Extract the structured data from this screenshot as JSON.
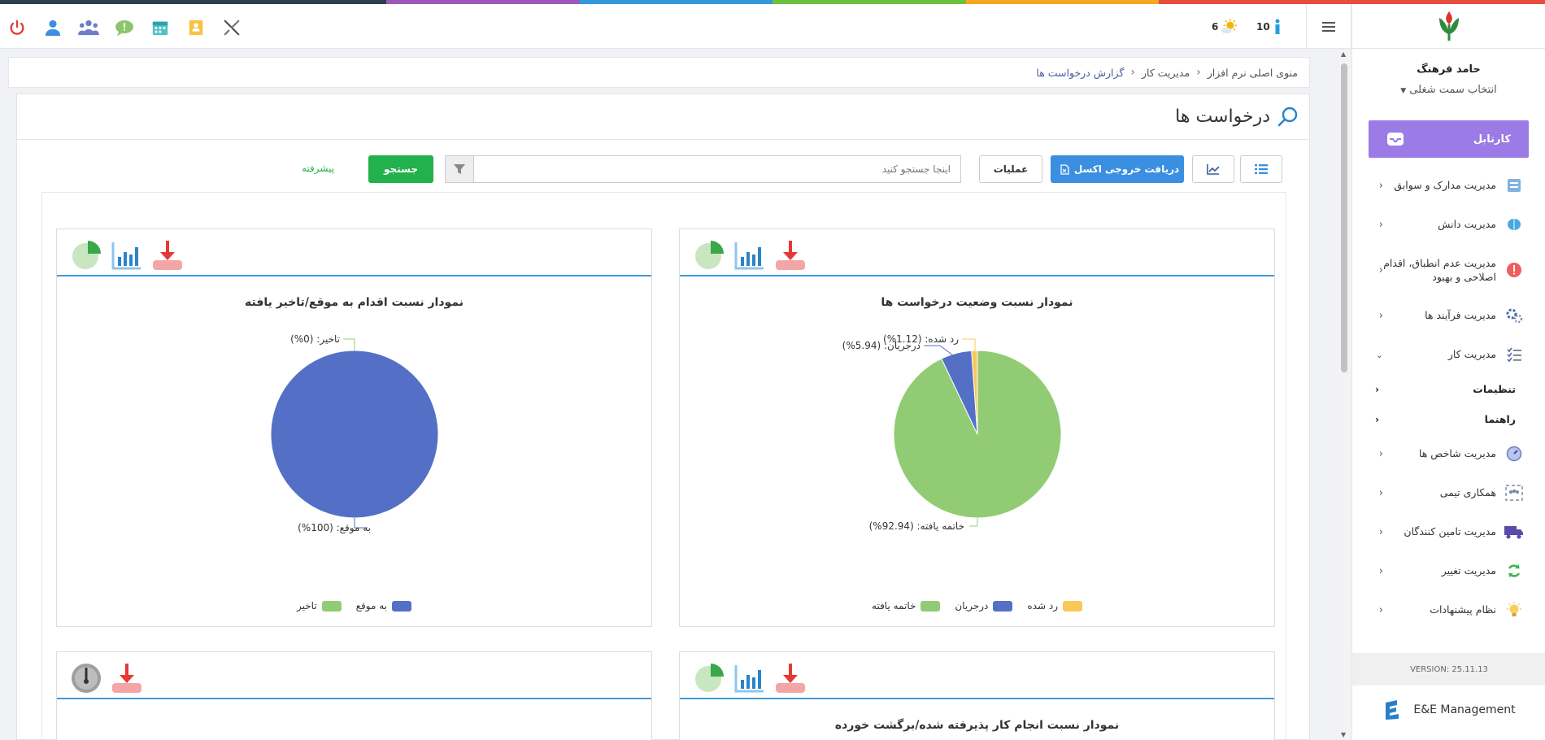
{
  "topbar": {
    "notif_info_count": "10",
    "notif_weather_count": "6"
  },
  "sidebar": {
    "user_name": "حامد فرهنگ",
    "role_select": "انتخاب سمت شغلی",
    "kartabl": "کارتابل",
    "items": [
      {
        "label": "مدیریت مدارک و سوابق"
      },
      {
        "label": "مدیریت دانش"
      },
      {
        "label": "مدیریت عدم انطباق، اقدام اصلاحی و بهبود"
      },
      {
        "label": "مدیریت فرآیند ها"
      },
      {
        "label": "مدیریت کار"
      },
      {
        "label": "مدیریت شاخص ها"
      },
      {
        "label": "همکاری تیمی"
      },
      {
        "label": "مدیریت تامین کنندگان"
      },
      {
        "label": "مدیریت تغییر"
      },
      {
        "label": "نظام پیشنهادات"
      }
    ],
    "subitems": [
      {
        "label": "تنظیمات"
      },
      {
        "label": "راهنما"
      }
    ],
    "version": "VERSION: 25.11.13",
    "brand": "E&E Management"
  },
  "breadcrumb": {
    "items": [
      "منوی اصلی نرم افزار",
      "مدیریت کار",
      "گزارش درخواست ها"
    ]
  },
  "page": {
    "title": "درخواست ها"
  },
  "toolbar": {
    "excel": "دریافت خروجی اکسل",
    "operations": "عملیات",
    "search_placeholder": "اینجا جستجو کنید",
    "search_button": "جستجو",
    "advanced": "پیشرفته"
  },
  "chart_data": [
    {
      "type": "pie",
      "title": "نمودار نسبت وضعیت درخواست ها",
      "categories": [
        "خاتمه یافته",
        "درجریان",
        "رد شده"
      ],
      "values": [
        92.94,
        5.94,
        1.12
      ],
      "labels": [
        "خاتمه یافته: (92.94%)",
        "درجریان: (5.94%)",
        "رد شده: (1.12%)"
      ],
      "colors": [
        "#91cc75",
        "#5470c6",
        "#fac858"
      ],
      "legend_position": "bottom"
    },
    {
      "type": "pie",
      "title": "نمودار نسبت اقدام به موقع/تاخیر یافته",
      "categories": [
        "به موقع",
        "تاخیر"
      ],
      "values": [
        100,
        0
      ],
      "labels": [
        "به موقع: (100%)",
        "تاخیر: (0%)"
      ],
      "colors": [
        "#5470c6",
        "#91cc75"
      ],
      "legend_position": "bottom"
    },
    {
      "type": "pie",
      "title": "نمودار نسبت انجام کار پذیرفته شده/برگشت خورده",
      "categories": [],
      "values": []
    }
  ],
  "colors": {
    "strip": [
      "#2c3e50",
      "#2c3e50",
      "#9b59b6",
      "#3498db",
      "#3498db",
      "#6ac13a",
      "#f39c12",
      "#e74c3c",
      "#e74c3c"
    ]
  }
}
